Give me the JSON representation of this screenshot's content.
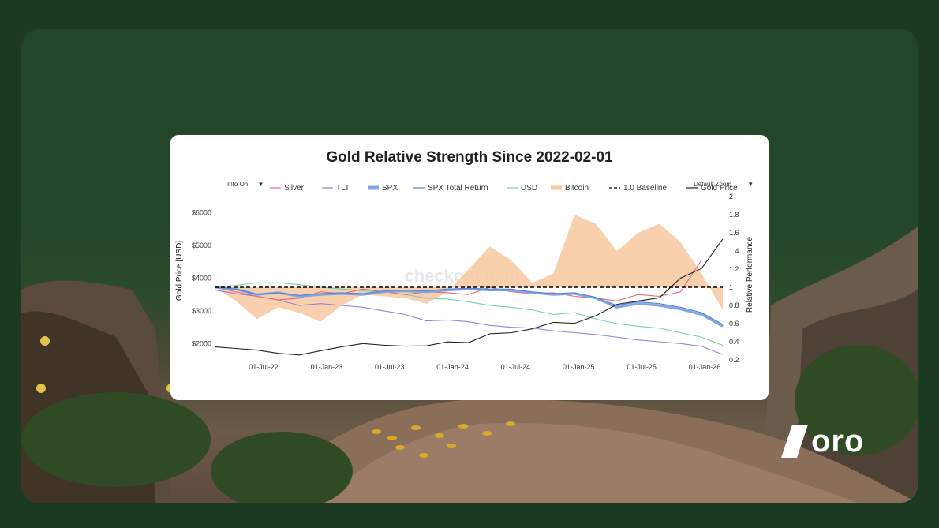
{
  "chart_data": {
    "type": "line",
    "title": "Gold Relative Strength Since 2022-02-01",
    "controls": {
      "info": "Info On",
      "zoom": "Default Zoom",
      "caret": "▼"
    },
    "watermark": "checkonchain",
    "ylabel_left": "Gold Price [USD]",
    "ylabel_right": "Relative Performance",
    "ylim_left": [
      1500,
      6500
    ],
    "ylim_right": [
      0.2,
      2.0
    ],
    "yticks_left": [
      "$2000",
      "$3000",
      "$4000",
      "$5000",
      "$6000"
    ],
    "yticks_right": [
      "0.2",
      "0.4",
      "0.6",
      "0.8",
      "1",
      "1.2",
      "1.4",
      "1.6",
      "1.8",
      "2"
    ],
    "xticks": [
      "01-Jul-22",
      "01-Jan-23",
      "01-Jul-23",
      "01-Jan-24",
      "01-Jul-24",
      "01-Jan-25",
      "01-Jul-25",
      "01-Jan-26"
    ],
    "x": [
      "Feb-22",
      "Apr-22",
      "Jun-22",
      "Aug-22",
      "Oct-22",
      "Dec-22",
      "Feb-23",
      "Apr-23",
      "Jun-23",
      "Aug-23",
      "Oct-23",
      "Dec-23",
      "Feb-24",
      "Apr-24",
      "Jun-24",
      "Aug-24",
      "Oct-24",
      "Dec-24",
      "Feb-25",
      "Apr-25",
      "Jun-25",
      "Aug-25",
      "Oct-25",
      "Dec-25",
      "Feb-26"
    ],
    "series": [
      {
        "name": "Silver",
        "axis": "right",
        "color": "#e8677a",
        "values": [
          1.0,
          0.95,
          0.9,
          0.86,
          0.88,
          0.95,
          0.93,
          0.98,
          0.95,
          0.92,
          0.95,
          0.94,
          0.92,
          1.0,
          0.95,
          0.93,
          0.94,
          0.9,
          0.88,
          0.85,
          0.92,
          0.9,
          0.95,
          1.3,
          1.3
        ]
      },
      {
        "name": "TLT",
        "axis": "right",
        "color": "#9b7fd4",
        "values": [
          0.97,
          0.93,
          0.9,
          0.86,
          0.8,
          0.82,
          0.8,
          0.78,
          0.74,
          0.7,
          0.63,
          0.64,
          0.62,
          0.58,
          0.56,
          0.55,
          0.52,
          0.5,
          0.48,
          0.45,
          0.42,
          0.4,
          0.38,
          0.35,
          0.26
        ]
      },
      {
        "name": "SPX",
        "axis": "right",
        "color": "#7fa6e0",
        "values": [
          1.0,
          0.98,
          0.92,
          0.94,
          0.9,
          0.92,
          0.93,
          0.92,
          0.95,
          0.96,
          0.95,
          0.97,
          0.98,
          0.97,
          0.97,
          0.94,
          0.92,
          0.93,
          0.88,
          0.78,
          0.82,
          0.8,
          0.76,
          0.7,
          0.57
        ]
      },
      {
        "name": "SPX Total Return",
        "axis": "right",
        "color": "#4f86d8",
        "values": [
          1.0,
          0.98,
          0.92,
          0.94,
          0.91,
          0.93,
          0.94,
          0.93,
          0.96,
          0.97,
          0.96,
          0.98,
          0.99,
          0.98,
          0.98,
          0.95,
          0.93,
          0.94,
          0.89,
          0.8,
          0.84,
          0.82,
          0.78,
          0.72,
          0.59
        ]
      },
      {
        "name": "USD",
        "axis": "right",
        "color": "#6fd1b0",
        "values": [
          1.0,
          1.02,
          1.05,
          1.05,
          1.03,
          1.0,
          0.98,
          0.96,
          0.95,
          0.92,
          0.88,
          0.87,
          0.84,
          0.8,
          0.78,
          0.75,
          0.7,
          0.72,
          0.65,
          0.6,
          0.57,
          0.55,
          0.5,
          0.45,
          0.36
        ]
      },
      {
        "name": "Bitcoin",
        "axis": "right",
        "color": "#f7c8a0",
        "values": [
          1.0,
          0.85,
          0.65,
          0.78,
          0.72,
          0.62,
          0.8,
          0.92,
          0.9,
          0.88,
          0.82,
          0.95,
          1.2,
          1.45,
          1.3,
          1.05,
          1.15,
          1.8,
          1.7,
          1.4,
          1.6,
          1.7,
          1.5,
          1.15,
          0.75
        ]
      },
      {
        "name": "1.0 Baseline",
        "axis": "right",
        "color": "#000000",
        "dashed": true,
        "values": [
          1,
          1,
          1,
          1,
          1,
          1,
          1,
          1,
          1,
          1,
          1,
          1,
          1,
          1,
          1,
          1,
          1,
          1,
          1,
          1,
          1,
          1,
          1,
          1,
          1
        ]
      },
      {
        "name": "Gold Price",
        "axis": "left",
        "color": "#222222",
        "values": [
          1900,
          1850,
          1800,
          1700,
          1650,
          1780,
          1900,
          2000,
          1950,
          1920,
          1930,
          2050,
          2030,
          2300,
          2330,
          2450,
          2650,
          2620,
          2850,
          3200,
          3300,
          3400,
          4000,
          4300,
          5200
        ]
      }
    ]
  },
  "brand": {
    "logo_text": "oro"
  }
}
